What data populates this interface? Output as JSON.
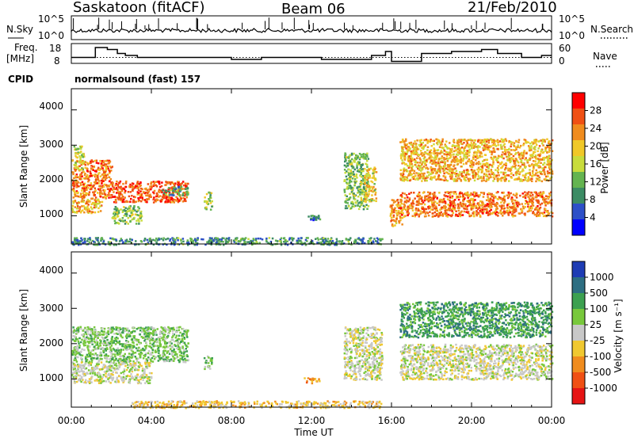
{
  "header": {
    "site": "Saskatoon (fitACF)",
    "beam": "Beam 06",
    "date": "21/Feb/2010"
  },
  "top_panel": {
    "left_label": "N.Sky",
    "right_label": "N.Search",
    "left_ticks": [
      "10^5",
      "10^0"
    ],
    "right_ticks": [
      "10^5",
      "10^0"
    ]
  },
  "freq_panel": {
    "left_label_1": "Freq.",
    "left_label_2": "[MHz]",
    "right_label": "Nave",
    "left_ticks": [
      "18",
      "8"
    ],
    "right_ticks": [
      "60",
      "0"
    ]
  },
  "cpid": {
    "label": "CPID",
    "text": "normalsound (fast) 157"
  },
  "power_panel": {
    "ylabel": "Slant Range [km]",
    "yticks": [
      "4000",
      "3000",
      "2000",
      "1000"
    ],
    "colorbar_label": "Power [dB]",
    "colorbar_ticks": [
      "28",
      "24",
      "20",
      "16",
      "12",
      "8",
      "4"
    ],
    "colors": [
      "#0000ff",
      "#2d50c8",
      "#3c8c64",
      "#64b450",
      "#c8dc3c",
      "#f0c828",
      "#f08c1e",
      "#f05014",
      "#ff0000"
    ]
  },
  "velocity_panel": {
    "ylabel": "Slant Range [km]",
    "yticks": [
      "4000",
      "3000",
      "2000",
      "1000"
    ],
    "colorbar_label": "Velocity [m s⁻¹]",
    "colorbar_ticks": [
      "1000",
      "500",
      "100",
      "25",
      "-25",
      "-100",
      "-500",
      "-1000"
    ],
    "colors": [
      "#1e3cb4",
      "#2d6e82",
      "#3ca050",
      "#78c83c",
      "#c8c8c8",
      "#f0c830",
      "#f08c1e",
      "#f05014",
      "#e61414"
    ]
  },
  "xaxis": {
    "label": "Time UT",
    "ticks": [
      "00:00",
      "04:00",
      "08:00",
      "12:00",
      "16:00",
      "20:00",
      "00:00"
    ]
  },
  "chart_data": [
    {
      "type": "line",
      "title": "",
      "x_unit": "hours UT",
      "xlim": [
        0,
        24
      ],
      "step": true,
      "series": [
        {
          "name": "Freq. [MHz]",
          "x": [
            0,
            1.2,
            1.8,
            2.3,
            2.7,
            3.3,
            4.0,
            5.5,
            6.5,
            8.0,
            9.5,
            11.0,
            12.5,
            13.5,
            14.5,
            15.0,
            15.7,
            16.0,
            16.8,
            17.5,
            19.0,
            20.5,
            21.3,
            22.5,
            23.5,
            24.0
          ],
          "values": [
            11,
            16,
            15,
            13,
            12,
            11,
            11,
            11,
            11,
            10,
            11,
            11,
            10,
            10,
            10,
            12,
            14,
            9,
            9,
            13,
            14,
            15,
            13,
            11,
            12,
            12
          ]
        }
      ],
      "reference_level": 11,
      "ylim": [
        8,
        18
      ]
    },
    {
      "type": "heatmap",
      "title": "Power",
      "xlabel": "Time UT",
      "ylabel": "Slant Range [km]",
      "xlim": [
        0,
        24
      ],
      "ylim": [
        200,
        4600
      ],
      "colorbar": {
        "label": "Power [dB]",
        "ticks": [
          4,
          8,
          12,
          16,
          20,
          24,
          28
        ],
        "range": [
          0,
          30
        ]
      },
      "patches": [
        {
          "t0": 0.0,
          "t1": 2.0,
          "r0": 1500,
          "r1": 2600,
          "v": 24
        },
        {
          "t0": 0.1,
          "t1": 0.6,
          "r0": 2300,
          "r1": 3000,
          "v": 16
        },
        {
          "t0": 2.0,
          "t1": 5.8,
          "r0": 1400,
          "r1": 2000,
          "v": 26
        },
        {
          "t0": 4.5,
          "t1": 5.8,
          "r0": 1600,
          "r1": 1850,
          "v": 10
        },
        {
          "t0": 0.0,
          "t1": 1.5,
          "r0": 1100,
          "r1": 1500,
          "v": 20
        },
        {
          "t0": 2.0,
          "t1": 3.5,
          "r0": 800,
          "r1": 1300,
          "v": 12
        },
        {
          "t0": 6.6,
          "t1": 7.0,
          "r0": 1200,
          "r1": 1700,
          "v": 14
        },
        {
          "t0": 11.8,
          "t1": 12.4,
          "r0": 900,
          "r1": 1050,
          "v": 6
        },
        {
          "t0": 13.6,
          "t1": 14.8,
          "r0": 1200,
          "r1": 2800,
          "v": 12
        },
        {
          "t0": 14.6,
          "t1": 15.2,
          "r0": 1400,
          "r1": 2400,
          "v": 18
        },
        {
          "t0": 15.9,
          "t1": 16.5,
          "r0": 700,
          "r1": 1500,
          "v": 22
        },
        {
          "t0": 16.4,
          "t1": 24.0,
          "r0": 2000,
          "r1": 3200,
          "v": 20
        },
        {
          "t0": 16.4,
          "t1": 24.0,
          "r0": 1000,
          "r1": 1700,
          "v": 24
        },
        {
          "t0": 0.0,
          "t1": 15.5,
          "r0": 200,
          "r1": 400,
          "v": 8
        }
      ]
    },
    {
      "type": "heatmap",
      "title": "Velocity",
      "xlabel": "Time UT",
      "ylabel": "Slant Range [km]",
      "xlim": [
        0,
        24
      ],
      "ylim": [
        200,
        4600
      ],
      "colorbar": {
        "label": "Velocity [m s⁻¹]",
        "ticks": [
          1000,
          500,
          100,
          25,
          -25,
          -100,
          -500,
          -1000
        ]
      },
      "patches": [
        {
          "t0": 0.0,
          "t1": 5.8,
          "r0": 1500,
          "r1": 2500,
          "v": 50
        },
        {
          "t0": 0.0,
          "t1": 4.0,
          "r0": 900,
          "r1": 1500,
          "v": 0
        },
        {
          "t0": 6.6,
          "t1": 7.0,
          "r0": 1300,
          "r1": 1700,
          "v": 80
        },
        {
          "t0": 11.6,
          "t1": 12.4,
          "r0": 900,
          "r1": 1050,
          "v": -120
        },
        {
          "t0": 13.6,
          "t1": 15.5,
          "r0": 1000,
          "r1": 2500,
          "v": 0
        },
        {
          "t0": 16.4,
          "t1": 24.0,
          "r0": 2200,
          "r1": 3200,
          "v": 150
        },
        {
          "t0": 16.4,
          "t1": 24.0,
          "r0": 1000,
          "r1": 2000,
          "v": 0
        },
        {
          "t0": 3.0,
          "t1": 15.5,
          "r0": 200,
          "r1": 400,
          "v": -60
        }
      ]
    }
  ]
}
